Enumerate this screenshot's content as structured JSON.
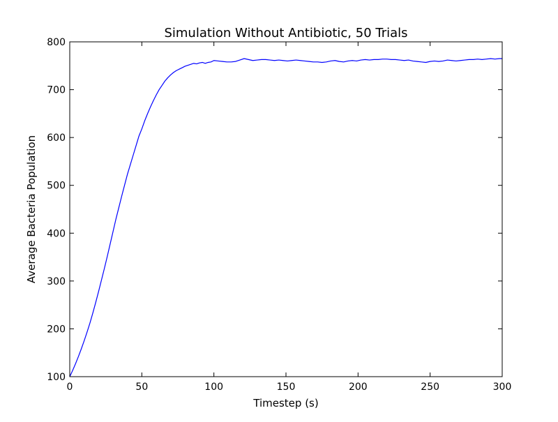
{
  "chart_data": {
    "type": "line",
    "title": "Simulation Without Antibiotic, 50 Trials",
    "xlabel": "Timestep (s)",
    "ylabel": "Average Bacteria Population",
    "xlim": [
      0,
      300
    ],
    "ylim": [
      100,
      800
    ],
    "xticks": [
      "0",
      "50",
      "100",
      "150",
      "200",
      "250",
      "300"
    ],
    "yticks": [
      "100",
      "200",
      "300",
      "400",
      "500",
      "600",
      "700",
      "800"
    ],
    "grid": false,
    "series": [
      {
        "color": "#0000ff",
        "x": [
          0,
          2,
          4,
          6,
          8,
          10,
          12,
          14,
          16,
          18,
          20,
          22,
          24,
          26,
          28,
          30,
          32,
          34,
          36,
          38,
          40,
          42,
          44,
          46,
          48,
          50,
          52,
          54,
          56,
          58,
          60,
          62,
          64,
          66,
          68,
          70,
          72,
          74,
          76,
          78,
          80,
          82,
          84,
          86,
          88,
          90,
          92,
          94,
          96,
          98,
          100,
          103,
          106,
          109,
          112,
          115,
          118,
          121,
          124,
          127,
          130,
          133,
          136,
          139,
          142,
          145,
          148,
          151,
          154,
          157,
          160,
          163,
          166,
          169,
          172,
          175,
          178,
          181,
          184,
          187,
          190,
          193,
          196,
          199,
          202,
          205,
          208,
          211,
          214,
          217,
          220,
          223,
          226,
          229,
          232,
          235,
          238,
          241,
          244,
          247,
          250,
          253,
          256,
          259,
          262,
          265,
          268,
          271,
          274,
          277,
          280,
          283,
          286,
          289,
          292,
          295,
          298,
          300
        ],
        "y": [
          100,
          113,
          127,
          142,
          158,
          175,
          193,
          212,
          233,
          255,
          278,
          302,
          326,
          351,
          377,
          403,
          429,
          453,
          477,
          500,
          523,
          543,
          563,
          583,
          603,
          618,
          635,
          650,
          664,
          677,
          689,
          700,
          709,
          718,
          725,
          731,
          736,
          740,
          743,
          746,
          749,
          751,
          753,
          755,
          754,
          756,
          757,
          755,
          757,
          758,
          761,
          760,
          759,
          758,
          758,
          759,
          762,
          765,
          763,
          761,
          762,
          763,
          763,
          762,
          761,
          762,
          761,
          760,
          761,
          762,
          761,
          760,
          759,
          758,
          758,
          757,
          758,
          760,
          761,
          759,
          758,
          760,
          761,
          760,
          762,
          763,
          762,
          763,
          763,
          764,
          764,
          763,
          763,
          762,
          761,
          762,
          760,
          759,
          758,
          757,
          759,
          760,
          759,
          760,
          762,
          761,
          760,
          761,
          762,
          763,
          763,
          764,
          763,
          764,
          765,
          764,
          765,
          765
        ]
      }
    ]
  }
}
